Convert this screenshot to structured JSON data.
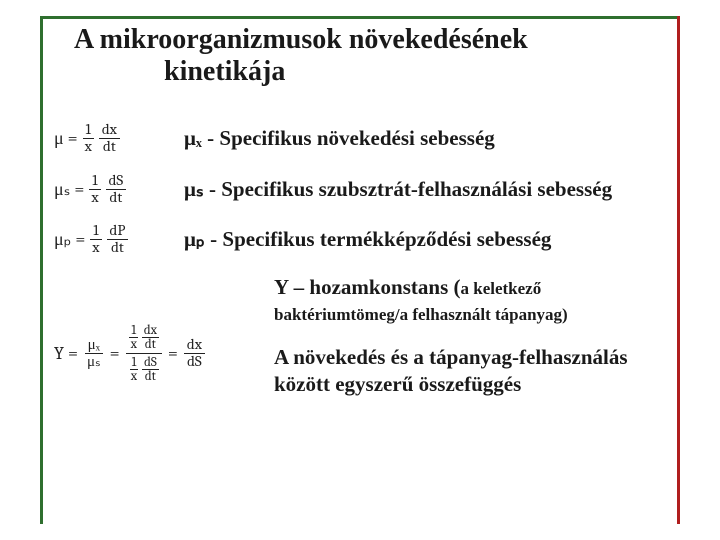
{
  "colors": {
    "frame_green": "#2f6f2f",
    "frame_red": "#b01e1e",
    "text": "#1a1a1a",
    "background": "#ffffff"
  },
  "typography": {
    "title_fontsize_pt": 21,
    "desc_fontsize_pt": 16,
    "equation_fontsize_pt": 14,
    "font_family": "Times New Roman"
  },
  "title": {
    "line1": "A mikroorganizmusok növekedésének",
    "line2": "kinetikája"
  },
  "definitions": [
    {
      "eq": {
        "lhs": "μ =",
        "f1_num": "1",
        "f1_den": "x",
        "f2_num": "dx",
        "f2_den": "dt"
      },
      "symbol": "μₓ",
      "text": " - Specifikus növekedési sebesség"
    },
    {
      "eq": {
        "lhs": "μₛ =",
        "f1_num": "1",
        "f1_den": "x",
        "f2_num": "dS",
        "f2_den": "dt"
      },
      "symbol": "μₛ",
      "text": " -  Specifikus szubsztrát-felhasználási sebesség"
    },
    {
      "eq": {
        "lhs": "μₚ =",
        "f1_num": "1",
        "f1_den": "x",
        "f2_num": "dP",
        "f2_den": "dt"
      },
      "symbol": "μₚ",
      "text": " - Specifikus termékképződési sebesség"
    }
  ],
  "y": {
    "eq": {
      "lhs": "Y =",
      "top_mu": "μₓ",
      "bot_mu": "μₛ",
      "expand_top": {
        "a_num": "1",
        "a_den": "x",
        "b_num": "dx",
        "b_den": "dt"
      },
      "expand_bot": {
        "a_num": "1",
        "a_den": "x",
        "b_num": "dS",
        "b_den": "dt"
      },
      "rhs_num": "dx",
      "rhs_den": "dS"
    },
    "heading": "Y – hozamkonstans (",
    "sub": "a keletkező baktériumtömeg/a felhasznált tápanyag)",
    "para2": "A növekedés és a tápanyag-felhasználás között egyszerű összefüggés"
  }
}
